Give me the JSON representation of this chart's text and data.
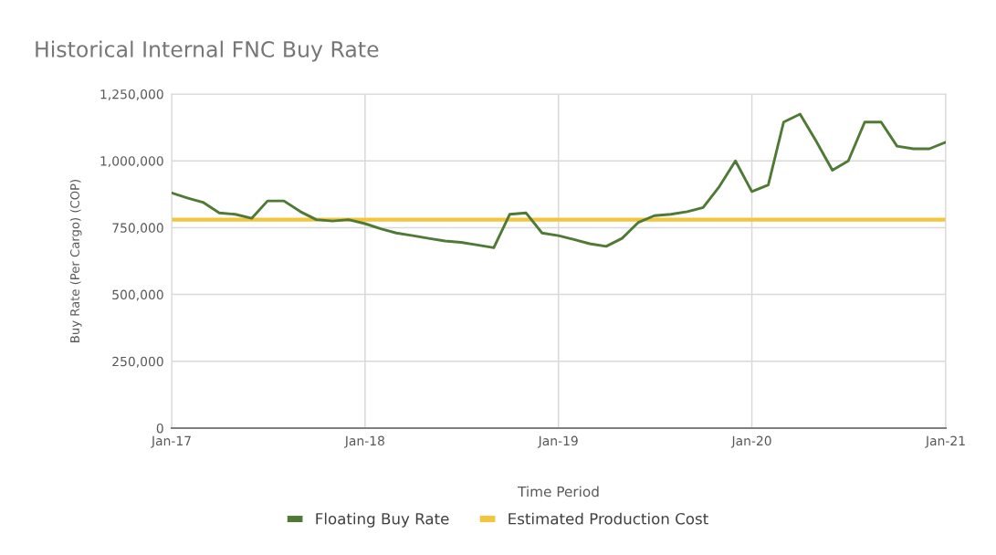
{
  "chart_data": {
    "type": "line",
    "title": "Historical Internal FNC Buy Rate",
    "xlabel": "Time Period",
    "ylabel": "Buy Rate (Per Cargo) (COP)",
    "x": [
      "2017-01",
      "2017-02",
      "2017-03",
      "2017-04",
      "2017-05",
      "2017-06",
      "2017-07",
      "2017-08",
      "2017-09",
      "2017-10",
      "2017-11",
      "2017-12",
      "2018-01",
      "2018-02",
      "2018-03",
      "2018-04",
      "2018-05",
      "2018-06",
      "2018-07",
      "2018-08",
      "2018-09",
      "2018-10",
      "2018-11",
      "2018-12",
      "2019-01",
      "2019-02",
      "2019-03",
      "2019-04",
      "2019-05",
      "2019-06",
      "2019-07",
      "2019-08",
      "2019-09",
      "2019-10",
      "2019-11",
      "2019-12",
      "2020-01",
      "2020-02",
      "2020-03",
      "2020-04",
      "2020-05",
      "2020-06",
      "2020-07",
      "2020-08",
      "2020-09",
      "2020-10",
      "2020-11",
      "2020-12",
      "2021-01"
    ],
    "series": [
      {
        "name": "Floating Buy Rate",
        "color": "#4e7a35",
        "values": [
          880000,
          860000,
          845000,
          805000,
          800000,
          785000,
          850000,
          850000,
          810000,
          780000,
          775000,
          780000,
          765000,
          745000,
          730000,
          720000,
          710000,
          700000,
          695000,
          685000,
          675000,
          800000,
          805000,
          730000,
          720000,
          705000,
          690000,
          680000,
          710000,
          770000,
          795000,
          800000,
          810000,
          825000,
          905000,
          1000000,
          885000,
          910000,
          1145000,
          1175000,
          1075000,
          965000,
          1000000,
          1145000,
          1145000,
          1055000,
          1045000,
          1045000,
          1070000
        ]
      },
      {
        "name": "Estimated Production Cost",
        "color": "#f2c53d",
        "x": [
          "2017-01",
          "2021-01"
        ],
        "values": [
          780000,
          780000
        ]
      }
    ],
    "xlim": [
      "2017-01",
      "2021-01"
    ],
    "xticks": [
      {
        "value": "2017-01",
        "label": "Jan-17"
      },
      {
        "value": "2018-01",
        "label": "Jan-18"
      },
      {
        "value": "2019-01",
        "label": "Jan-19"
      },
      {
        "value": "2020-01",
        "label": "Jan-20"
      },
      {
        "value": "2021-01",
        "label": "Jan-21"
      }
    ],
    "ylim": [
      0,
      1250000
    ],
    "yticks": [
      0,
      {
        "value": 250000,
        "label": "250,000"
      },
      {
        "value": 500000,
        "label": "500,000"
      },
      {
        "value": 750000,
        "label": "750,000"
      },
      {
        "value": 1000000,
        "label": "1,000,000"
      },
      {
        "value": 1250000,
        "label": "1,250,000"
      }
    ],
    "grid": true,
    "legend": "bottom",
    "line_style": "solid"
  }
}
